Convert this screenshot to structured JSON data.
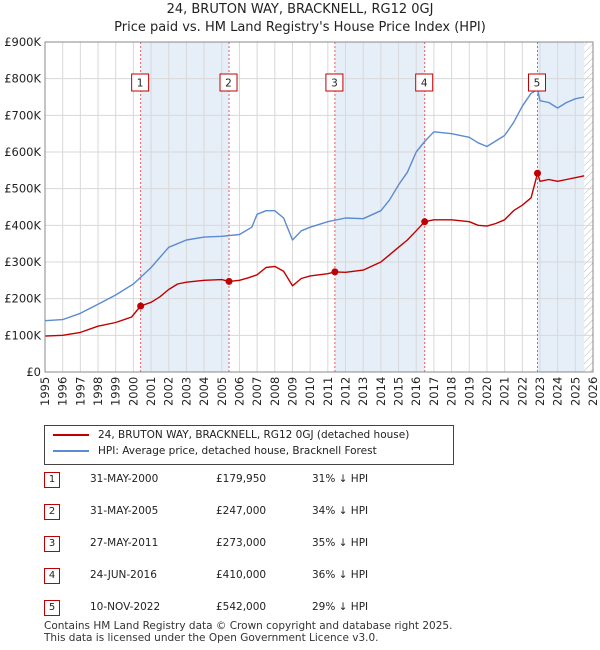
{
  "header": {
    "title_line1": "24, BRUTON WAY, BRACKNELL, RG12 0GJ",
    "title_line2": "Price paid vs. HM Land Registry's House Price Index (HPI)"
  },
  "colors": {
    "property_line": "#c00000",
    "hpi_line": "#5b8bd0",
    "shading": "#e6eef8",
    "vline": "#e06060",
    "grid": "#d8d8d8"
  },
  "legend": {
    "property_label": "24, BRUTON WAY, BRACKNELL, RG12 0GJ (detached house)",
    "hpi_label": "HPI: Average price, detached house, Bracknell Forest"
  },
  "sales": [
    {
      "num": "1",
      "date": "31-MAY-2000",
      "price": "£179,950",
      "hpi": "31% ↓ HPI"
    },
    {
      "num": "2",
      "date": "31-MAY-2005",
      "price": "£247,000",
      "hpi": "34% ↓ HPI"
    },
    {
      "num": "3",
      "date": "27-MAY-2011",
      "price": "£273,000",
      "hpi": "35% ↓ HPI"
    },
    {
      "num": "4",
      "date": "24-JUN-2016",
      "price": "£410,000",
      "hpi": "36% ↓ HPI"
    },
    {
      "num": "5",
      "date": "10-NOV-2022",
      "price": "£542,000",
      "hpi": "29% ↓ HPI"
    }
  ],
  "footer": {
    "line1": "Contains HM Land Registry data © Crown copyright and database right 2025.",
    "line2": "This data is licensed under the Open Government Licence v3.0."
  },
  "chart_data": {
    "type": "line",
    "xlim": [
      1995,
      2026
    ],
    "ylim": [
      0,
      900000
    ],
    "x_ticks": [
      1995,
      1996,
      1997,
      1998,
      1999,
      2000,
      2001,
      2002,
      2003,
      2004,
      2005,
      2006,
      2007,
      2008,
      2009,
      2010,
      2011,
      2012,
      2013,
      2014,
      2015,
      2016,
      2017,
      2018,
      2019,
      2020,
      2021,
      2022,
      2023,
      2024,
      2025,
      2026
    ],
    "y_ticks": [
      0,
      100000,
      200000,
      300000,
      400000,
      500000,
      600000,
      700000,
      800000,
      900000
    ],
    "y_tick_labels": [
      "£0",
      "£100K",
      "£200K",
      "£300K",
      "£400K",
      "£500K",
      "£600K",
      "£700K",
      "£800K",
      "£900K"
    ],
    "shaded_ranges": [
      [
        2000.41,
        2005.41
      ],
      [
        2011.4,
        2016.48
      ],
      [
        2022.86,
        2025.5
      ]
    ],
    "hatch_start": 2025.5,
    "series": [
      {
        "name": "24, BRUTON WAY, BRACKNELL, RG12 0GJ (detached house)",
        "x": [
          1995.0,
          1996.0,
          1997.0,
          1998.0,
          1999.0,
          1999.9,
          2000.41,
          2001.0,
          2001.5,
          2002.0,
          2002.5,
          2003.0,
          2004.0,
          2005.0,
          2005.41,
          2006.0,
          2006.5,
          2007.0,
          2007.5,
          2008.0,
          2008.5,
          2009.0,
          2009.5,
          2010.0,
          2010.5,
          2011.0,
          2011.4,
          2012.0,
          2013.0,
          2014.0,
          2014.5,
          2015.0,
          2015.5,
          2016.0,
          2016.48,
          2017.0,
          2018.0,
          2019.0,
          2019.5,
          2020.0,
          2020.5,
          2021.0,
          2021.5,
          2022.0,
          2022.5,
          2022.86,
          2023.0,
          2023.5,
          2024.0,
          2024.5,
          2025.0,
          2025.5
        ],
        "values": [
          98000,
          100000,
          108000,
          125000,
          135000,
          150000,
          179950,
          190000,
          205000,
          225000,
          240000,
          245000,
          250000,
          252000,
          247000,
          250000,
          257000,
          265000,
          285000,
          288000,
          275000,
          235000,
          255000,
          262000,
          265000,
          268000,
          273000,
          272000,
          278000,
          300000,
          320000,
          340000,
          360000,
          385000,
          410000,
          415000,
          415000,
          410000,
          400000,
          398000,
          405000,
          415000,
          440000,
          455000,
          475000,
          542000,
          520000,
          525000,
          520000,
          525000,
          530000,
          535000
        ]
      },
      {
        "name": "HPI: Average price, detached house, Bracknell Forest",
        "x": [
          1995.0,
          1996.0,
          1997.0,
          1998.0,
          1999.0,
          2000.0,
          2000.5,
          2001.0,
          2002.0,
          2003.0,
          2004.0,
          2005.0,
          2006.0,
          2006.7,
          2007.0,
          2007.5,
          2008.0,
          2008.5,
          2009.0,
          2009.5,
          2010.0,
          2011.0,
          2012.0,
          2013.0,
          2014.0,
          2014.5,
          2015.0,
          2015.5,
          2016.0,
          2016.5,
          2017.0,
          2018.0,
          2019.0,
          2019.5,
          2020.0,
          2020.5,
          2021.0,
          2021.5,
          2022.0,
          2022.5,
          2022.86,
          2023.0,
          2023.5,
          2024.0,
          2024.5,
          2025.0,
          2025.5
        ],
        "values": [
          140000,
          143000,
          160000,
          185000,
          210000,
          240000,
          262000,
          285000,
          340000,
          360000,
          368000,
          370000,
          375000,
          395000,
          430000,
          440000,
          440000,
          420000,
          360000,
          385000,
          395000,
          410000,
          420000,
          418000,
          440000,
          470000,
          510000,
          545000,
          600000,
          630000,
          655000,
          650000,
          640000,
          625000,
          615000,
          630000,
          645000,
          680000,
          725000,
          760000,
          770000,
          740000,
          735000,
          720000,
          735000,
          745000,
          750000
        ]
      }
    ],
    "sale_markers": [
      {
        "label": "1",
        "x": 2000.41,
        "y": 179950
      },
      {
        "label": "2",
        "x": 2005.41,
        "y": 247000
      },
      {
        "label": "3",
        "x": 2011.4,
        "y": 273000
      },
      {
        "label": "4",
        "x": 2016.48,
        "y": 410000
      },
      {
        "label": "5",
        "x": 2022.86,
        "y": 542000
      }
    ]
  }
}
